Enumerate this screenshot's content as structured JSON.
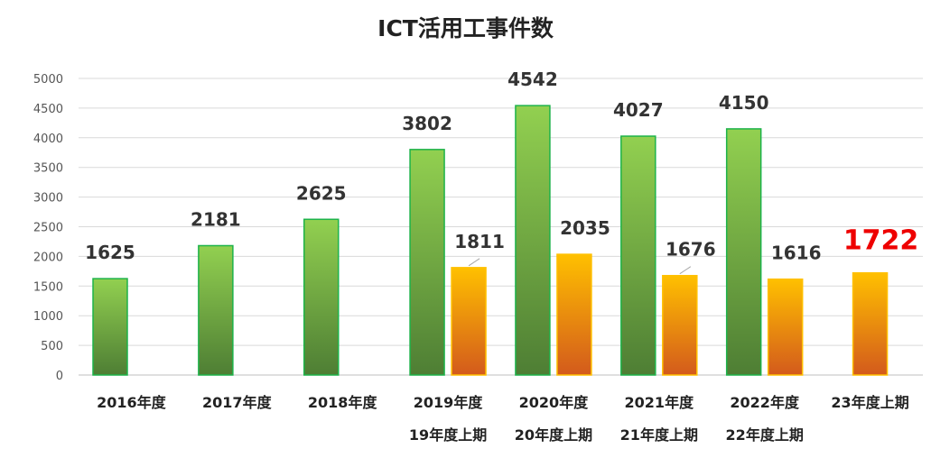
{
  "chart_data": {
    "type": "bar",
    "title": "ICT活用工事件数",
    "xlabel": "",
    "ylabel": "",
    "ylim": [
      0,
      5000
    ],
    "yticks": [
      0,
      500,
      1000,
      1500,
      2000,
      2500,
      3000,
      3500,
      4000,
      4500,
      5000
    ],
    "grid": true,
    "categories": [
      {
        "line1": "2016年度",
        "line2": ""
      },
      {
        "line1": "2017年度",
        "line2": ""
      },
      {
        "line1": "2018年度",
        "line2": ""
      },
      {
        "line1": "2019年度",
        "line2": "19年度上期"
      },
      {
        "line1": "2020年度",
        "line2": "20年度上期"
      },
      {
        "line1": "2021年度",
        "line2": "21年度上期"
      },
      {
        "line1": "2022年度",
        "line2": "22年度上期"
      },
      {
        "line1": "23年度上期",
        "line2": ""
      }
    ],
    "series": [
      {
        "values": [
          1625,
          2181,
          2625,
          3802,
          4542,
          4027,
          4150,
          null
        ],
        "color": "#5aa238"
      },
      {
        "values": [
          null,
          null,
          null,
          1811,
          2035,
          1676,
          1616,
          1722
        ],
        "color": "#f5a623"
      }
    ],
    "highlight": {
      "category_index": 7,
      "color": "#ee0000"
    }
  }
}
